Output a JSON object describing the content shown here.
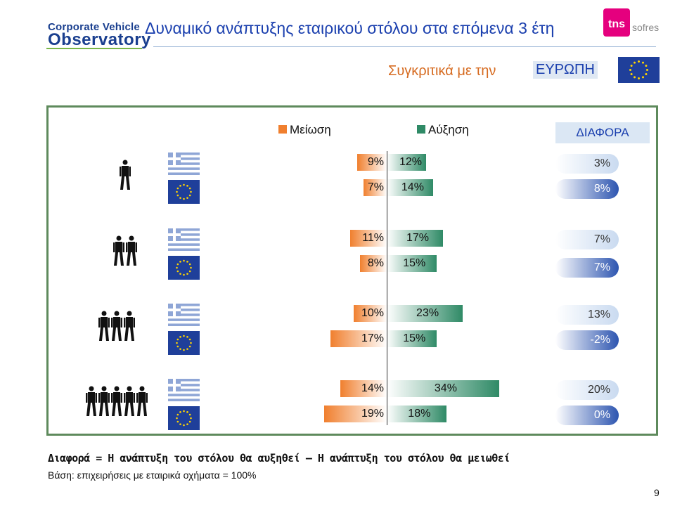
{
  "header": {
    "logo_line1": "Corporate Vehicle",
    "logo_line2": "Observatory",
    "title": "Δυναμικό ανάπτυξης εταιρικού στόλου στα επόμενα 3 έτη",
    "brand_tns": "tns",
    "brand_sofres": "sofres",
    "subtitle_prefix": "Συγκριτικά με την",
    "subtitle_highlight": "ΕΥΡΩΠΗ"
  },
  "legend": {
    "decrease": "Μείωση",
    "increase": "Αύξηση",
    "difference": "ΔΙΑΦΟΡΑ"
  },
  "colors": {
    "decrease": "#f07f2e",
    "increase": "#2f8a66",
    "panel_border": "#5e8a5c",
    "title_blue": "#1a3fae",
    "subtitle_orange": "#d66a1f"
  },
  "chart_data": {
    "type": "bar",
    "orientation": "horizontal-diverging",
    "categories": [
      "1 employee",
      "2 employees",
      "3 employees",
      "5 employees"
    ],
    "groups": [
      {
        "icon": "person-1-icon",
        "rows": [
          {
            "region": "Greece",
            "decrease": 9,
            "increase": 12,
            "difference": 3,
            "decrease_label": "9%",
            "increase_label": "12%",
            "difference_label": "3%"
          },
          {
            "region": "Europe",
            "decrease": 7,
            "increase": 14,
            "difference": 8,
            "decrease_label": "7%",
            "increase_label": "14%",
            "difference_label": "8%"
          }
        ]
      },
      {
        "icon": "person-2-icon",
        "rows": [
          {
            "region": "Greece",
            "decrease": 11,
            "increase": 17,
            "difference": 7,
            "decrease_label": "11%",
            "increase_label": "17%",
            "difference_label": "7%"
          },
          {
            "region": "Europe",
            "decrease": 8,
            "increase": 15,
            "difference": 7,
            "decrease_label": "8%",
            "increase_label": "15%",
            "difference_label": "7%"
          }
        ]
      },
      {
        "icon": "person-3-icon",
        "rows": [
          {
            "region": "Greece",
            "decrease": 10,
            "increase": 23,
            "difference": 13,
            "decrease_label": "10%",
            "increase_label": "23%",
            "difference_label": "13%"
          },
          {
            "region": "Europe",
            "decrease": 17,
            "increase": 15,
            "difference": -2,
            "decrease_label": "17%",
            "increase_label": "15%",
            "difference_label": "-2%"
          }
        ]
      },
      {
        "icon": "person-5-icon",
        "rows": [
          {
            "region": "Greece",
            "decrease": 14,
            "increase": 34,
            "difference": 20,
            "decrease_label": "14%",
            "increase_label": "34%",
            "difference_label": "20%"
          },
          {
            "region": "Europe",
            "decrease": 19,
            "increase": 18,
            "difference": 0,
            "decrease_label": "19%",
            "increase_label": "18%",
            "difference_label": "0%"
          }
        ]
      }
    ],
    "legend": [
      "Μείωση",
      "Αύξηση"
    ],
    "legend_position": "top"
  },
  "footer": {
    "note": "Διαφορά = Η ανάπτυξη του στόλου θα αυξηθεί – Η ανάπτυξη του στόλου θα μειωθεί",
    "base": "Βάση: επιχειρήσεις με εταιρικά οχήματα = 100%",
    "page_number": "9"
  }
}
